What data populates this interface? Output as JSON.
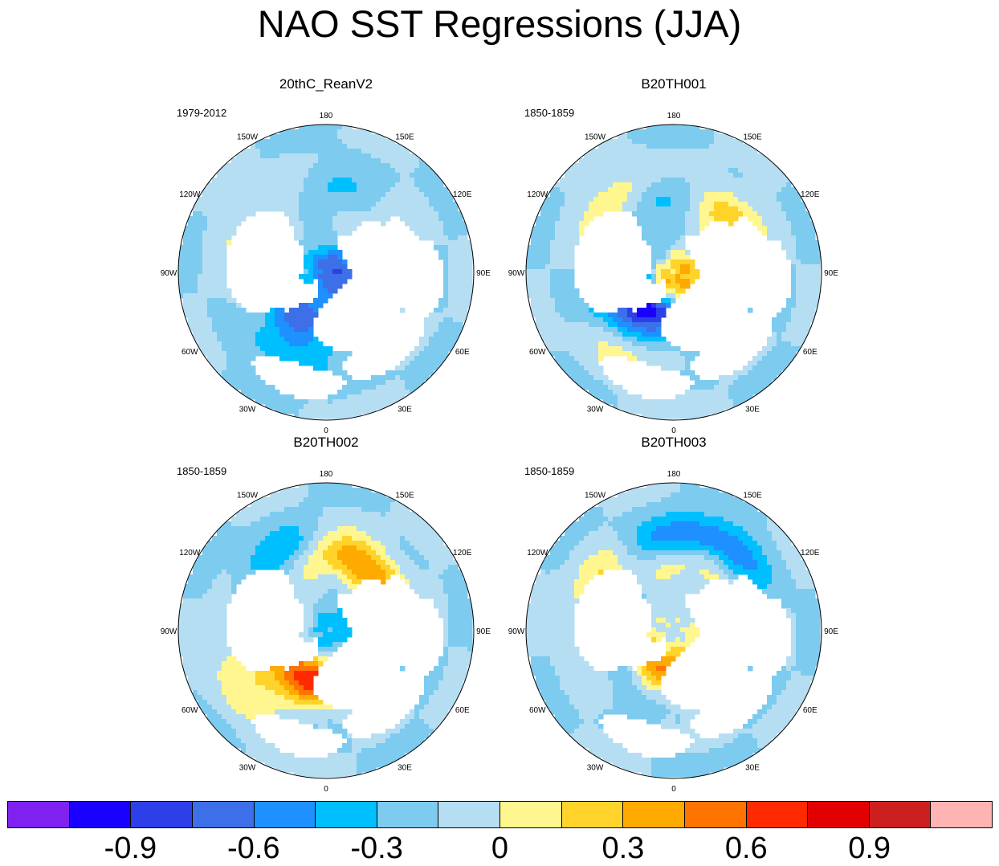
{
  "title": "NAO SST Regressions (JJA)",
  "panels": [
    {
      "name": "20thC_ReanV2",
      "period": "1979-2012"
    },
    {
      "name": "B20TH001",
      "period": "1850-1859"
    },
    {
      "name": "B20TH002",
      "period": "1850-1859"
    },
    {
      "name": "B20TH003",
      "period": "1850-1859"
    }
  ],
  "longitude_labels": [
    "180",
    "150E",
    "120E",
    "90E",
    "60E",
    "30E",
    "0",
    "30W",
    "60W",
    "90W",
    "120W",
    "150W"
  ],
  "colorbar": {
    "colors": [
      "#7f22f0",
      "#1a00ff",
      "#2c3fe8",
      "#3c6fe8",
      "#1e90ff",
      "#00bfff",
      "#7ecbf0",
      "#b5def2",
      "#fff68f",
      "#ffd32a",
      "#ffaa00",
      "#ff7300",
      "#ff2a00",
      "#e30000",
      "#cc1f1f",
      "#ffb3b3"
    ],
    "tick_labels": [
      "-0.9",
      "-0.6",
      "-0.3",
      "0",
      "0.3",
      "0.6",
      "0.9"
    ]
  },
  "map_fields": {
    "panel_0": {
      "blobs": [
        {
          "lon": 175,
          "lat": 40,
          "v": -0.3
        },
        {
          "lon": 205,
          "lat": 42,
          "v": 0.15
        },
        {
          "lon": 140,
          "lat": 40,
          "v": 0.15
        },
        {
          "lon": 240,
          "lat": 35,
          "v": 0.15
        },
        {
          "lon": 300,
          "lat": 42,
          "v": 0.2
        },
        {
          "lon": 330,
          "lat": 35,
          "v": -0.3
        },
        {
          "lon": 320,
          "lat": 55,
          "v": -0.45
        },
        {
          "lon": 355,
          "lat": 70,
          "v": -0.3
        },
        {
          "lon": 10,
          "lat": 80,
          "v": 0.15
        },
        {
          "lon": 95,
          "lat": 85,
          "v": -0.6
        }
      ]
    },
    "panel_1": {
      "blobs": [
        {
          "lon": 215,
          "lat": 35,
          "v": 0.4
        },
        {
          "lon": 185,
          "lat": 42,
          "v": -0.45
        },
        {
          "lon": 150,
          "lat": 40,
          "v": 0.25
        },
        {
          "lon": 130,
          "lat": 45,
          "v": 0.3
        },
        {
          "lon": 40,
          "lat": 78,
          "v": 0.7
        },
        {
          "lon": 315,
          "lat": 62,
          "v": -0.6
        },
        {
          "lon": 20,
          "lat": 65,
          "v": -0.45
        },
        {
          "lon": 330,
          "lat": 30,
          "v": 0.2
        },
        {
          "lon": 295,
          "lat": 45,
          "v": -0.3
        }
      ]
    },
    "panel_2": {
      "blobs": [
        {
          "lon": 165,
          "lat": 42,
          "v": 0.45
        },
        {
          "lon": 210,
          "lat": 35,
          "v": -0.3
        },
        {
          "lon": 130,
          "lat": 45,
          "v": 0.3
        },
        {
          "lon": 330,
          "lat": 55,
          "v": 0.4
        },
        {
          "lon": 350,
          "lat": 62,
          "v": 0.45
        },
        {
          "lon": 290,
          "lat": 45,
          "v": 0.2
        },
        {
          "lon": 305,
          "lat": 25,
          "v": 0.2
        },
        {
          "lon": 80,
          "lat": 80,
          "v": -0.3
        }
      ]
    },
    "panel_3": {
      "blobs": [
        {
          "lon": 160,
          "lat": 45,
          "v": 0.35
        },
        {
          "lon": 185,
          "lat": 35,
          "v": -0.3
        },
        {
          "lon": 150,
          "lat": 30,
          "v": -0.45
        },
        {
          "lon": 235,
          "lat": 35,
          "v": 0.3
        },
        {
          "lon": 10,
          "lat": 68,
          "v": 0.45
        },
        {
          "lon": 340,
          "lat": 60,
          "v": 0.35
        },
        {
          "lon": 320,
          "lat": 50,
          "v": -0.3
        },
        {
          "lon": 300,
          "lat": 40,
          "v": 0.15
        }
      ]
    }
  }
}
